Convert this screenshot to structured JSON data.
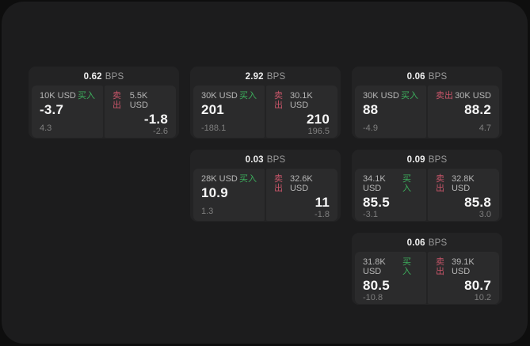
{
  "labels": {
    "bps_suffix": "BPS",
    "buy": "买入",
    "sell": "卖出"
  },
  "colors": {
    "buy_accent": "#3cae5c",
    "sell_accent": "#c75569",
    "surface": "#1c1c1d",
    "card": "#232324",
    "panel": "#2b2b2c",
    "value_text": "#f6f6f6",
    "muted_text": "#7f7f7f"
  },
  "cards": [
    {
      "col": 1,
      "row": 1,
      "bps": "0.62",
      "buy": {
        "notional": "10K USD",
        "value": "-3.7",
        "delta": "4.3"
      },
      "sell": {
        "notional": "5.5K USD",
        "value": "-1.8",
        "delta": "-2.6"
      }
    },
    {
      "col": 2,
      "row": 1,
      "bps": "2.92",
      "buy": {
        "notional": "30K USD",
        "value": "201",
        "delta": "-188.1"
      },
      "sell": {
        "notional": "30.1K USD",
        "value": "210",
        "delta": "196.5"
      }
    },
    {
      "col": 2,
      "row": 2,
      "bps": "0.03",
      "buy": {
        "notional": "28K USD",
        "value": "10.9",
        "delta": "1.3"
      },
      "sell": {
        "notional": "32.6K USD",
        "value": "11",
        "delta": "-1.8"
      }
    },
    {
      "col": 3,
      "row": 1,
      "bps": "0.06",
      "buy": {
        "notional": "30K USD",
        "value": "88",
        "delta": "-4.9"
      },
      "sell": {
        "notional": "30K USD",
        "value": "88.2",
        "delta": "4.7"
      }
    },
    {
      "col": 3,
      "row": 2,
      "bps": "0.09",
      "buy": {
        "notional": "34.1K USD",
        "value": "85.5",
        "delta": "-3.1"
      },
      "sell": {
        "notional": "32.8K USD",
        "value": "85.8",
        "delta": "3.0"
      }
    },
    {
      "col": 3,
      "row": 3,
      "bps": "0.06",
      "buy": {
        "notional": "31.8K USD",
        "value": "80.5",
        "delta": "-10.8"
      },
      "sell": {
        "notional": "39.1K USD",
        "value": "80.7",
        "delta": "10.2"
      }
    }
  ]
}
